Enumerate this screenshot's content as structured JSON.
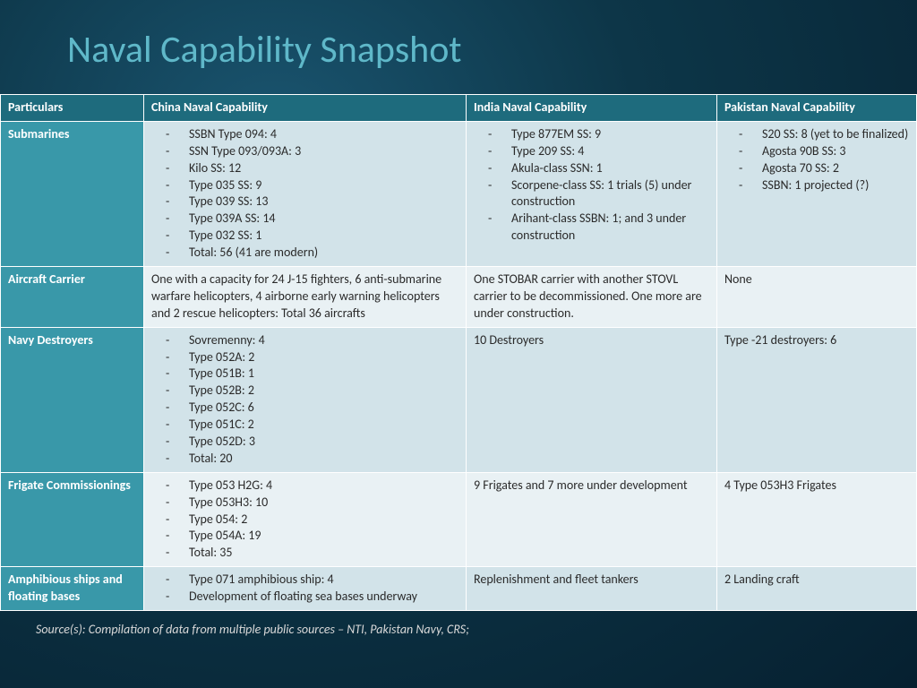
{
  "title": "Naval Capability Snapshot",
  "columns": [
    "Particulars",
    "China Naval Capability",
    "India Naval Capability",
    "Pakistan Naval Capability"
  ],
  "rows": [
    {
      "label": "Submarines",
      "stripe": "odd",
      "china_list": [
        "SSBN Type 094: 4",
        "SSN Type 093/093A: 3",
        "Kilo SS: 12",
        "Type 035 SS: 9",
        "Type 039 SS: 13",
        "Type 039A SS: 14",
        "Type 032 SS: 1",
        "Total: 56 (41 are  modern)"
      ],
      "india_list": [
        "Type 877EM SS: 9",
        "Type 209 SS: 4",
        "Akula-class SSN: 1",
        "Scorpene-class SS: 1 trials (5) under construction",
        "Arihant-class SSBN: 1; and 3 under construction"
      ],
      "pak_list": [
        "S20 SS: 8 (yet to be finalized)",
        "Agosta 90B SS: 3",
        "Agosta 70 SS: 2",
        "SSBN: 1 projected (?)"
      ]
    },
    {
      "label": "Aircraft Carrier",
      "stripe": "even",
      "china_text": "One with a capacity for 24 J-15 fighters, 6 anti-submarine warfare helicopters, 4 airborne early warning helicopters and 2 rescue helicopters: Total 36 aircrafts",
      "india_text": "One STOBAR carrier with another STOVL carrier to be decommissioned. One more are under construction.",
      "pak_text": "None"
    },
    {
      "label": "Navy Destroyers",
      "stripe": "odd",
      "china_list": [
        "Sovremenny: 4",
        "Type 052A: 2",
        "Type 051B: 1",
        "Type 052B: 2",
        "Type 052C: 6",
        "Type 051C: 2",
        "Type 052D: 3",
        "Total: 20"
      ],
      "india_text": "10 Destroyers",
      "pak_text": "Type -21 destroyers: 6"
    },
    {
      "label": "Frigate Commissionings",
      "stripe": "even",
      "china_list": [
        "Type 053 H2G: 4",
        "Type 053H3: 10",
        "Type 054: 2",
        "Type 054A: 19",
        "Total: 35"
      ],
      "india_text": "9 Frigates and 7 more under development",
      "pak_text": "4 Type 053H3 Frigates"
    },
    {
      "label": "Amphibious ships and floating bases",
      "stripe": "odd",
      "china_list": [
        "Type 071 amphibious ship: 4",
        "Development of floating sea bases underway"
      ],
      "india_text": "Replenishment and fleet tankers",
      "pak_text": "2 Landing craft"
    }
  ],
  "source": "Source(s): Compilation of data from multiple public sources – NTI, Pakistan Navy, CRS;",
  "colors": {
    "title": "#5fb8c9",
    "header_bg": "#1e6b7d",
    "rowlabel_bg": "#3998a9",
    "band_odd": "#d2e3e9",
    "band_even": "#e9f1f4",
    "border": "#ffffff"
  }
}
